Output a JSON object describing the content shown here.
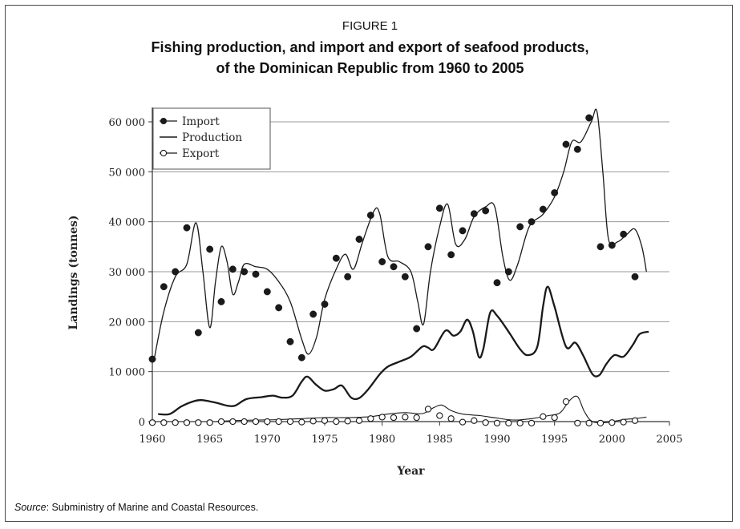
{
  "figure": {
    "label": "FIGURE 1",
    "title_line1": "Fishing production, and import and export of seafood products,",
    "title_line2": "of the Dominican Republic from 1960 to 2005",
    "source_prefix": "Source",
    "source_text": ": Subministry of Marine and Coastal Resources."
  },
  "chart_data": {
    "type": "line",
    "xlabel": "Year",
    "ylabel": "Landings (tonnes)",
    "xlim": [
      1960,
      2005
    ],
    "ylim": [
      0,
      62000
    ],
    "xticks": [
      1960,
      1965,
      1970,
      1975,
      1980,
      1985,
      1990,
      1995,
      2000,
      2005
    ],
    "yticks": [
      0,
      10000,
      20000,
      30000,
      40000,
      50000,
      60000
    ],
    "ytick_labels": [
      "0",
      "10 000",
      "20 000",
      "30 000",
      "40 000",
      "50 000",
      "60 000"
    ],
    "grid": "horizontal",
    "legend_position": "top-left",
    "legend": [
      "Import",
      "Production",
      "Export"
    ],
    "series": [
      {
        "name": "Import",
        "marker": "filled-circle",
        "points": [
          [
            1960,
            12500
          ],
          [
            1961,
            27000
          ],
          [
            1962,
            30000
          ],
          [
            1963,
            38800
          ],
          [
            1964,
            17800
          ],
          [
            1965,
            34500
          ],
          [
            1966,
            24000
          ],
          [
            1967,
            30500
          ],
          [
            1968,
            30000
          ],
          [
            1969,
            29500
          ],
          [
            1970,
            26000
          ],
          [
            1971,
            22800
          ],
          [
            1972,
            16000
          ],
          [
            1973,
            12800
          ],
          [
            1974,
            21500
          ],
          [
            1975,
            23500
          ],
          [
            1976,
            32700
          ],
          [
            1977,
            29000
          ],
          [
            1978,
            36500
          ],
          [
            1979,
            41300
          ],
          [
            1980,
            32000
          ],
          [
            1981,
            31000
          ],
          [
            1982,
            29000
          ],
          [
            1983,
            18600
          ],
          [
            1984,
            35000
          ],
          [
            1985,
            42700
          ],
          [
            1986,
            33400
          ],
          [
            1987,
            38200
          ],
          [
            1988,
            41600
          ],
          [
            1989,
            42200
          ],
          [
            1990,
            27800
          ],
          [
            1991,
            30000
          ],
          [
            1992,
            39000
          ],
          [
            1993,
            40000
          ],
          [
            1994,
            42500
          ],
          [
            1995,
            45800
          ],
          [
            1996,
            55500
          ],
          [
            1997,
            54500
          ],
          [
            1998,
            60800
          ],
          [
            1999,
            35000
          ],
          [
            2000,
            35300
          ],
          [
            2001,
            37500
          ],
          [
            2002,
            29000
          ]
        ],
        "curve": [
          [
            1960.2,
            13000
          ],
          [
            1961,
            22000
          ],
          [
            1962,
            29000
          ],
          [
            1963,
            31500
          ],
          [
            1963.8,
            39800
          ],
          [
            1964.4,
            30000
          ],
          [
            1965,
            18800
          ],
          [
            1965.5,
            28000
          ],
          [
            1966,
            35000
          ],
          [
            1966.5,
            32000
          ],
          [
            1967,
            25500
          ],
          [
            1967.5,
            28000
          ],
          [
            1968,
            31500
          ],
          [
            1969,
            31000
          ],
          [
            1970,
            30500
          ],
          [
            1971,
            28000
          ],
          [
            1972,
            24000
          ],
          [
            1973,
            16500
          ],
          [
            1973.6,
            13500
          ],
          [
            1974.3,
            17000
          ],
          [
            1975,
            24500
          ],
          [
            1976,
            30500
          ],
          [
            1976.8,
            33500
          ],
          [
            1977.5,
            30500
          ],
          [
            1978.3,
            36000
          ],
          [
            1979.3,
            42200
          ],
          [
            1979.8,
            41500
          ],
          [
            1980.5,
            33000
          ],
          [
            1981.5,
            32000
          ],
          [
            1982.5,
            30000
          ],
          [
            1983.1,
            24000
          ],
          [
            1983.6,
            19500
          ],
          [
            1984.2,
            30000
          ],
          [
            1985,
            39000
          ],
          [
            1985.7,
            43500
          ],
          [
            1986.4,
            35500
          ],
          [
            1987.2,
            36500
          ],
          [
            1988,
            41000
          ],
          [
            1989,
            43000
          ],
          [
            1989.8,
            43000
          ],
          [
            1990.5,
            33000
          ],
          [
            1991.1,
            28300
          ],
          [
            1991.8,
            31500
          ],
          [
            1992.8,
            39000
          ],
          [
            1994,
            41500
          ],
          [
            1995,
            45000
          ],
          [
            1995.8,
            50000
          ],
          [
            1996.5,
            56000
          ],
          [
            1997.3,
            56000
          ],
          [
            1998.2,
            60000
          ],
          [
            1998.7,
            62000
          ],
          [
            1999.2,
            50000
          ],
          [
            1999.7,
            36500
          ],
          [
            2000.5,
            36000
          ],
          [
            2001.3,
            37500
          ],
          [
            2002,
            38500
          ],
          [
            2002.6,
            35000
          ],
          [
            2003,
            30000
          ]
        ]
      },
      {
        "name": "Production",
        "curve": [
          [
            1960.5,
            1500
          ],
          [
            1961.5,
            1500
          ],
          [
            1962.5,
            3000
          ],
          [
            1963.5,
            4000
          ],
          [
            1964.3,
            4300
          ],
          [
            1965.5,
            3800
          ],
          [
            1966.5,
            3200
          ],
          [
            1967.2,
            3200
          ],
          [
            1968.2,
            4500
          ],
          [
            1969.5,
            4900
          ],
          [
            1970.5,
            5200
          ],
          [
            1971.3,
            4800
          ],
          [
            1972.2,
            5200
          ],
          [
            1973,
            8000
          ],
          [
            1973.5,
            9000
          ],
          [
            1974.2,
            7500
          ],
          [
            1975,
            6200
          ],
          [
            1975.8,
            6500
          ],
          [
            1976.5,
            7200
          ],
          [
            1977.3,
            4800
          ],
          [
            1978,
            4700
          ],
          [
            1978.8,
            6500
          ],
          [
            1979.8,
            9500
          ],
          [
            1980.5,
            11000
          ],
          [
            1981.5,
            12000
          ],
          [
            1982.5,
            13000
          ],
          [
            1983.5,
            15000
          ],
          [
            1984,
            14800
          ],
          [
            1984.5,
            14500
          ],
          [
            1985.5,
            18200
          ],
          [
            1986.2,
            17200
          ],
          [
            1986.8,
            18000
          ],
          [
            1987.4,
            20400
          ],
          [
            1987.9,
            18000
          ],
          [
            1988.4,
            13000
          ],
          [
            1988.8,
            14500
          ],
          [
            1989.4,
            21800
          ],
          [
            1990,
            21200
          ],
          [
            1991,
            18000
          ],
          [
            1992,
            14500
          ],
          [
            1992.7,
            13300
          ],
          [
            1993.5,
            15000
          ],
          [
            1994,
            23000
          ],
          [
            1994.4,
            27000
          ],
          [
            1995,
            23000
          ],
          [
            1996,
            15000
          ],
          [
            1996.8,
            15800
          ],
          [
            1997.5,
            13200
          ],
          [
            1998.3,
            9500
          ],
          [
            1998.9,
            9300
          ],
          [
            1999.5,
            11500
          ],
          [
            2000.2,
            13300
          ],
          [
            2001,
            13000
          ],
          [
            2001.8,
            15300
          ],
          [
            2002.4,
            17500
          ],
          [
            2003.2,
            18000
          ]
        ]
      },
      {
        "name": "Export",
        "marker": "open-circle",
        "points": [
          [
            1960,
            -200
          ],
          [
            1961,
            -200
          ],
          [
            1962,
            -200
          ],
          [
            1963,
            -200
          ],
          [
            1964,
            -200
          ],
          [
            1965,
            -200
          ],
          [
            1966,
            0
          ],
          [
            1967,
            0
          ],
          [
            1968,
            0
          ],
          [
            1969,
            0
          ],
          [
            1970,
            0
          ],
          [
            1971,
            0
          ],
          [
            1972,
            0
          ],
          [
            1973,
            -100
          ],
          [
            1974,
            100
          ],
          [
            1975,
            200
          ],
          [
            1976,
            0
          ],
          [
            1977,
            100
          ],
          [
            1978,
            200
          ],
          [
            1979,
            600
          ],
          [
            1980,
            900
          ],
          [
            1981,
            800
          ],
          [
            1982,
            900
          ],
          [
            1983,
            800
          ],
          [
            1984,
            2500
          ],
          [
            1985,
            1200
          ],
          [
            1986,
            600
          ],
          [
            1987,
            -100
          ],
          [
            1988,
            200
          ],
          [
            1989,
            -200
          ],
          [
            1990,
            -300
          ],
          [
            1991,
            -300
          ],
          [
            1992,
            -300
          ],
          [
            1993,
            -300
          ],
          [
            1994,
            1000
          ],
          [
            1995,
            800
          ],
          [
            1996,
            4000
          ],
          [
            1997,
            -300
          ],
          [
            1998,
            -300
          ],
          [
            1999,
            -300
          ],
          [
            2000,
            -200
          ],
          [
            2001,
            -100
          ],
          [
            2002,
            200
          ]
        ],
        "curve": [
          [
            1965.5,
            0
          ],
          [
            1967,
            200
          ],
          [
            1969,
            300
          ],
          [
            1971,
            400
          ],
          [
            1973,
            600
          ],
          [
            1975,
            800
          ],
          [
            1977,
            800
          ],
          [
            1979,
            1000
          ],
          [
            1980.5,
            1500
          ],
          [
            1982,
            1800
          ],
          [
            1983.5,
            1600
          ],
          [
            1984.5,
            2800
          ],
          [
            1985.2,
            3300
          ],
          [
            1986,
            2200
          ],
          [
            1987,
            1500
          ],
          [
            1988.5,
            1200
          ],
          [
            1990,
            700
          ],
          [
            1991.5,
            300
          ],
          [
            1993,
            600
          ],
          [
            1994.5,
            1200
          ],
          [
            1995.5,
            1800
          ],
          [
            1996.3,
            4200
          ],
          [
            1997,
            5000
          ],
          [
            1997.6,
            2000
          ],
          [
            1998.3,
            0
          ],
          [
            1999.5,
            -200
          ],
          [
            2001,
            400
          ],
          [
            2002,
            600
          ],
          [
            2003,
            900
          ]
        ]
      }
    ]
  }
}
